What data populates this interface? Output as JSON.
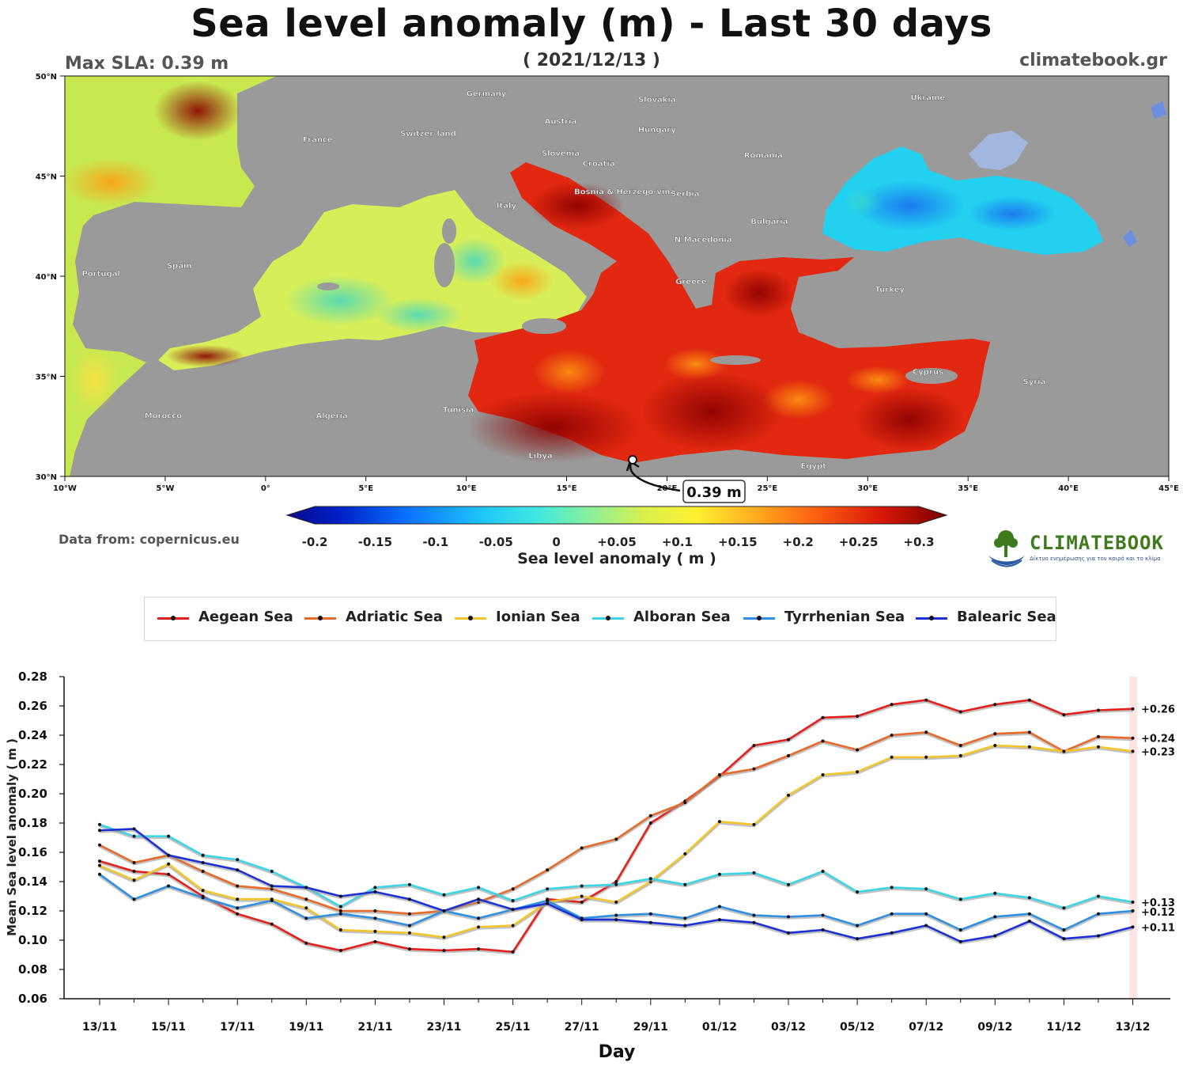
{
  "header": {
    "title": "Sea level anomaly (m) - Last 30 days",
    "date": "( 2021/12/13 )",
    "max_sla": "Max SLA: 0.39 m",
    "site": "climatebook.gr"
  },
  "map": {
    "lat_labels": [
      "50°N",
      "45°N",
      "40°N",
      "35°N",
      "30°N"
    ],
    "lon_labels": [
      "10°W",
      "5°W",
      "0°",
      "5°E",
      "10°E",
      "15°E",
      "20°E",
      "25°E",
      "30°E",
      "35°E",
      "40°E",
      "45°E"
    ],
    "places": [
      {
        "name": "Germany",
        "lon": 11,
        "lat": 49
      },
      {
        "name": "Slovakia",
        "lon": 19.5,
        "lat": 48.7
      },
      {
        "name": "Ukraine",
        "lon": 33,
        "lat": 48.8
      },
      {
        "name": "Austria",
        "lon": 14.7,
        "lat": 47.6
      },
      {
        "name": "Hungary",
        "lon": 19.5,
        "lat": 47.2
      },
      {
        "name": "France",
        "lon": 2.6,
        "lat": 46.7
      },
      {
        "name": "Switzer-land",
        "lon": 8.1,
        "lat": 47
      },
      {
        "name": "Slovenia",
        "lon": 14.7,
        "lat": 46
      },
      {
        "name": "Croatia",
        "lon": 16.6,
        "lat": 45.5
      },
      {
        "name": "Romania",
        "lon": 24.8,
        "lat": 45.9
      },
      {
        "name": "Bosnia & Herzego-vina",
        "lon": 17.9,
        "lat": 44.1
      },
      {
        "name": "Serbia",
        "lon": 20.9,
        "lat": 44
      },
      {
        "name": "Italy",
        "lon": 12,
        "lat": 43.4
      },
      {
        "name": "Bulgaria",
        "lon": 25.1,
        "lat": 42.6
      },
      {
        "name": "N.Macedonia",
        "lon": 21.8,
        "lat": 41.7
      },
      {
        "name": "Spain",
        "lon": -4.3,
        "lat": 40.4
      },
      {
        "name": "Portugal",
        "lon": -8.2,
        "lat": 40
      },
      {
        "name": "Greece",
        "lon": 21.2,
        "lat": 39.6
      },
      {
        "name": "Turkey",
        "lon": 31.1,
        "lat": 39.2
      },
      {
        "name": "Cyprus",
        "lon": 33,
        "lat": 35.1
      },
      {
        "name": "Syria",
        "lon": 38.3,
        "lat": 34.6
      },
      {
        "name": "Morocco",
        "lon": -5.1,
        "lat": 32.9
      },
      {
        "name": "Algeria",
        "lon": 3.3,
        "lat": 32.9
      },
      {
        "name": "Tunisia",
        "lon": 9.6,
        "lat": 33.2
      },
      {
        "name": "Libya",
        "lon": 13.7,
        "lat": 30.9
      },
      {
        "name": "Egypt",
        "lon": 27.3,
        "lat": 30.4
      }
    ],
    "max_marker": {
      "lon": 18.5,
      "lat": 31,
      "label": "0.39 m"
    }
  },
  "colorbar": {
    "ticks": [
      "-0.2",
      "-0.15",
      "-0.1",
      "-0.05",
      "0",
      "+0.05",
      "+0.1",
      "+0.15",
      "+0.2",
      "+0.25",
      "+0.3"
    ],
    "label": "Sea level anomaly ( m )",
    "source": "Data from: copernicus.eu",
    "colors": [
      "#0a0a8a",
      "#0030e0",
      "#0a8cff",
      "#22d8f0",
      "#6ff0b0",
      "#c8f060",
      "#fff23a",
      "#ffb020",
      "#ff6a10",
      "#e01a0a",
      "#8a0000"
    ]
  },
  "logo": {
    "word": "CLIMATEBOOK",
    "tagline": "Δίκτυο ενημέρωσης για τον καιρό και το κλίμα"
  },
  "chart_data": {
    "type": "line",
    "xlabel": "Day",
    "ylabel": "Mean Sea level anomaly ( m )",
    "ylim": [
      0.06,
      0.28
    ],
    "yticks": [
      "0.28",
      "0.26",
      "0.24",
      "0.22",
      "0.20",
      "0.18",
      "0.16",
      "0.14",
      "0.12",
      "0.10",
      "0.08",
      "0.06"
    ],
    "x": [
      "13/11",
      "14/11",
      "15/11",
      "16/11",
      "17/11",
      "18/11",
      "19/11",
      "20/11",
      "21/11",
      "22/11",
      "23/11",
      "24/11",
      "25/11",
      "26/11",
      "27/11",
      "28/11",
      "29/11",
      "30/11",
      "01/12",
      "02/12",
      "03/12",
      "04/12",
      "05/12",
      "06/12",
      "07/12",
      "08/12",
      "09/12",
      "10/12",
      "11/12",
      "12/12",
      "13/12"
    ],
    "xtick_labels": [
      "13/11",
      "15/11",
      "17/11",
      "19/11",
      "21/11",
      "23/11",
      "25/11",
      "27/11",
      "29/11",
      "01/12",
      "03/12",
      "05/12",
      "07/12",
      "09/12",
      "11/12",
      "13/12"
    ],
    "series": [
      {
        "name": "Aegean Sea",
        "color": "#e3201b",
        "end_label": "+0.26",
        "values": [
          0.154,
          0.147,
          0.145,
          0.13,
          0.118,
          0.111,
          0.098,
          0.093,
          0.099,
          0.094,
          0.093,
          0.094,
          0.092,
          0.128,
          0.126,
          0.14,
          0.18,
          0.195,
          0.212,
          0.233,
          0.237,
          0.252,
          0.253,
          0.261,
          0.264,
          0.256,
          0.261,
          0.264,
          0.254,
          0.257,
          0.258
        ]
      },
      {
        "name": "Adriatic Sea",
        "color": "#e86a2a",
        "end_label": "+0.24",
        "values": [
          0.165,
          0.153,
          0.158,
          0.147,
          0.137,
          0.135,
          0.128,
          0.12,
          0.12,
          0.118,
          0.12,
          0.126,
          0.135,
          0.148,
          0.163,
          0.169,
          0.185,
          0.194,
          0.213,
          0.217,
          0.226,
          0.236,
          0.23,
          0.24,
          0.242,
          0.233,
          0.241,
          0.242,
          0.229,
          0.239,
          0.238
        ]
      },
      {
        "name": "Ionian Sea",
        "color": "#f2c62a",
        "end_label": "+0.23",
        "values": [
          0.151,
          0.141,
          0.152,
          0.134,
          0.128,
          0.128,
          0.122,
          0.107,
          0.106,
          0.105,
          0.102,
          0.109,
          0.11,
          0.126,
          0.13,
          0.126,
          0.14,
          0.159,
          0.181,
          0.179,
          0.199,
          0.213,
          0.215,
          0.225,
          0.225,
          0.226,
          0.233,
          0.232,
          0.229,
          0.232,
          0.229
        ]
      },
      {
        "name": "Alboran Sea",
        "color": "#3ad6e6",
        "end_label": "+0.13",
        "values": [
          0.179,
          0.171,
          0.171,
          0.158,
          0.155,
          0.147,
          0.136,
          0.123,
          0.136,
          0.138,
          0.131,
          0.136,
          0.127,
          0.135,
          0.137,
          0.138,
          0.142,
          0.138,
          0.145,
          0.146,
          0.138,
          0.147,
          0.133,
          0.136,
          0.135,
          0.128,
          0.132,
          0.129,
          0.122,
          0.13,
          0.126
        ]
      },
      {
        "name": "Tyrrhenian Sea",
        "color": "#2f8fe0",
        "end_label": "+0.12",
        "values": [
          0.145,
          0.128,
          0.137,
          0.129,
          0.122,
          0.127,
          0.115,
          0.118,
          0.115,
          0.11,
          0.12,
          0.115,
          0.121,
          0.127,
          0.115,
          0.117,
          0.118,
          0.115,
          0.123,
          0.117,
          0.116,
          0.117,
          0.11,
          0.118,
          0.118,
          0.107,
          0.116,
          0.118,
          0.107,
          0.118,
          0.12
        ]
      },
      {
        "name": "Balearic Sea",
        "color": "#1c31d4",
        "end_label": "+0.11",
        "values": [
          0.175,
          0.176,
          0.158,
          0.153,
          0.148,
          0.137,
          0.136,
          0.13,
          0.133,
          0.128,
          0.12,
          0.128,
          0.121,
          0.125,
          0.114,
          0.114,
          0.112,
          0.11,
          0.114,
          0.112,
          0.105,
          0.107,
          0.101,
          0.105,
          0.11,
          0.099,
          0.103,
          0.113,
          0.101,
          0.103,
          0.109
        ]
      }
    ]
  }
}
